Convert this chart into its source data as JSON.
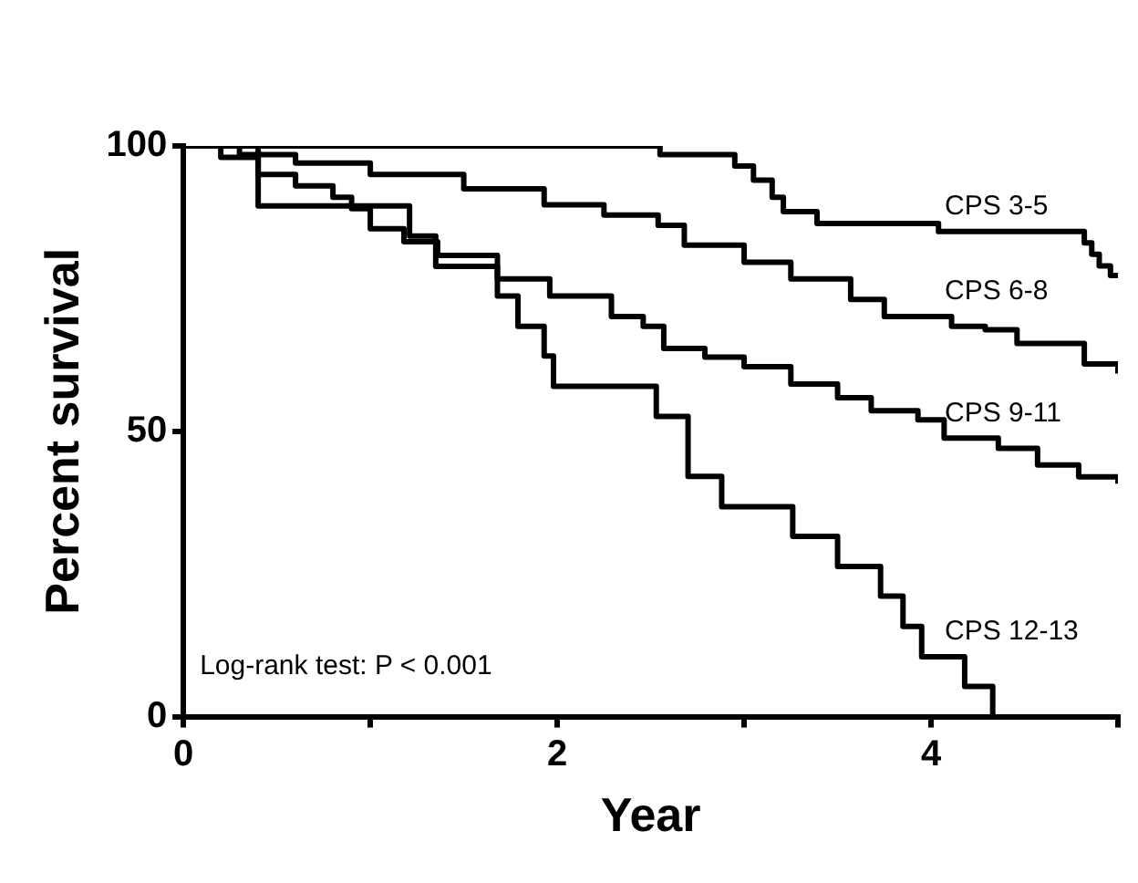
{
  "chart_data": {
    "type": "step",
    "xlabel": "Year",
    "ylabel": "Percent survival",
    "xlim": [
      0,
      5
    ],
    "ylim": [
      0,
      100
    ],
    "xticks": [
      0,
      {
        "value": 1,
        "label": null
      },
      2,
      {
        "value": 3,
        "label": null
      },
      4,
      {
        "value": 5,
        "label": null
      }
    ],
    "yticks": [
      0,
      50,
      100
    ],
    "annotations": [
      "Log-rank test: P < 0.001"
    ],
    "series": [
      {
        "name": "CPS 3-5",
        "color": "#000000",
        "x": [
          0,
          2.55,
          2.95,
          3.05,
          3.15,
          3.21,
          3.39,
          4.04,
          4.82,
          4.86,
          4.9,
          4.96,
          5
        ],
        "values": [
          100,
          98.5,
          96.5,
          94,
          91,
          88.5,
          86.4,
          85,
          83,
          81,
          79,
          77.3,
          77.3
        ]
      },
      {
        "name": "CPS 6-8",
        "color": "#000000",
        "x": [
          0,
          0.3,
          0.6,
          1.0,
          1.5,
          1.93,
          2.25,
          2.54,
          2.68,
          3.0,
          3.25,
          3.57,
          3.75,
          4.11,
          4.29,
          4.46,
          4.82,
          5
        ],
        "values": [
          100,
          98.5,
          97,
          95,
          92.5,
          89.7,
          87.9,
          86.1,
          82.6,
          79.6,
          76.7,
          73.1,
          70.1,
          68.4,
          67.8,
          65.4,
          61.8,
          60.1
        ]
      },
      {
        "name": "CPS 9-11",
        "color": "#000000",
        "x": [
          0,
          0.2,
          0.4,
          0.6,
          0.8,
          0.9,
          1.0,
          1.18,
          1.36,
          1.68,
          1.96,
          2.29,
          2.46,
          2.57,
          2.79,
          3.0,
          3.25,
          3.5,
          3.68,
          3.93,
          4.07,
          4.36,
          4.57,
          4.79,
          5
        ],
        "values": [
          100,
          98,
          95,
          93,
          91,
          89,
          85.5,
          83.2,
          80.8,
          76.7,
          73.7,
          70.1,
          68.4,
          64.5,
          63,
          61.3,
          58.3,
          55.9,
          53.6,
          52,
          48.8,
          47,
          44.1,
          42,
          40.8
        ]
      },
      {
        "name": "CPS 12-13",
        "color": "#000000",
        "x": [
          0,
          0.4,
          1.21,
          1.35,
          1.68,
          1.79,
          1.93,
          1.98,
          2.53,
          2.7,
          2.88,
          3.26,
          3.5,
          3.73,
          3.85,
          3.95,
          4.18,
          4.33
        ],
        "values": [
          100,
          89.5,
          84.2,
          78.9,
          73.7,
          68.4,
          63.2,
          57.9,
          52.6,
          42.1,
          36.8,
          31.6,
          26.3,
          21.1,
          15.8,
          10.5,
          5.3,
          0
        ]
      }
    ]
  }
}
